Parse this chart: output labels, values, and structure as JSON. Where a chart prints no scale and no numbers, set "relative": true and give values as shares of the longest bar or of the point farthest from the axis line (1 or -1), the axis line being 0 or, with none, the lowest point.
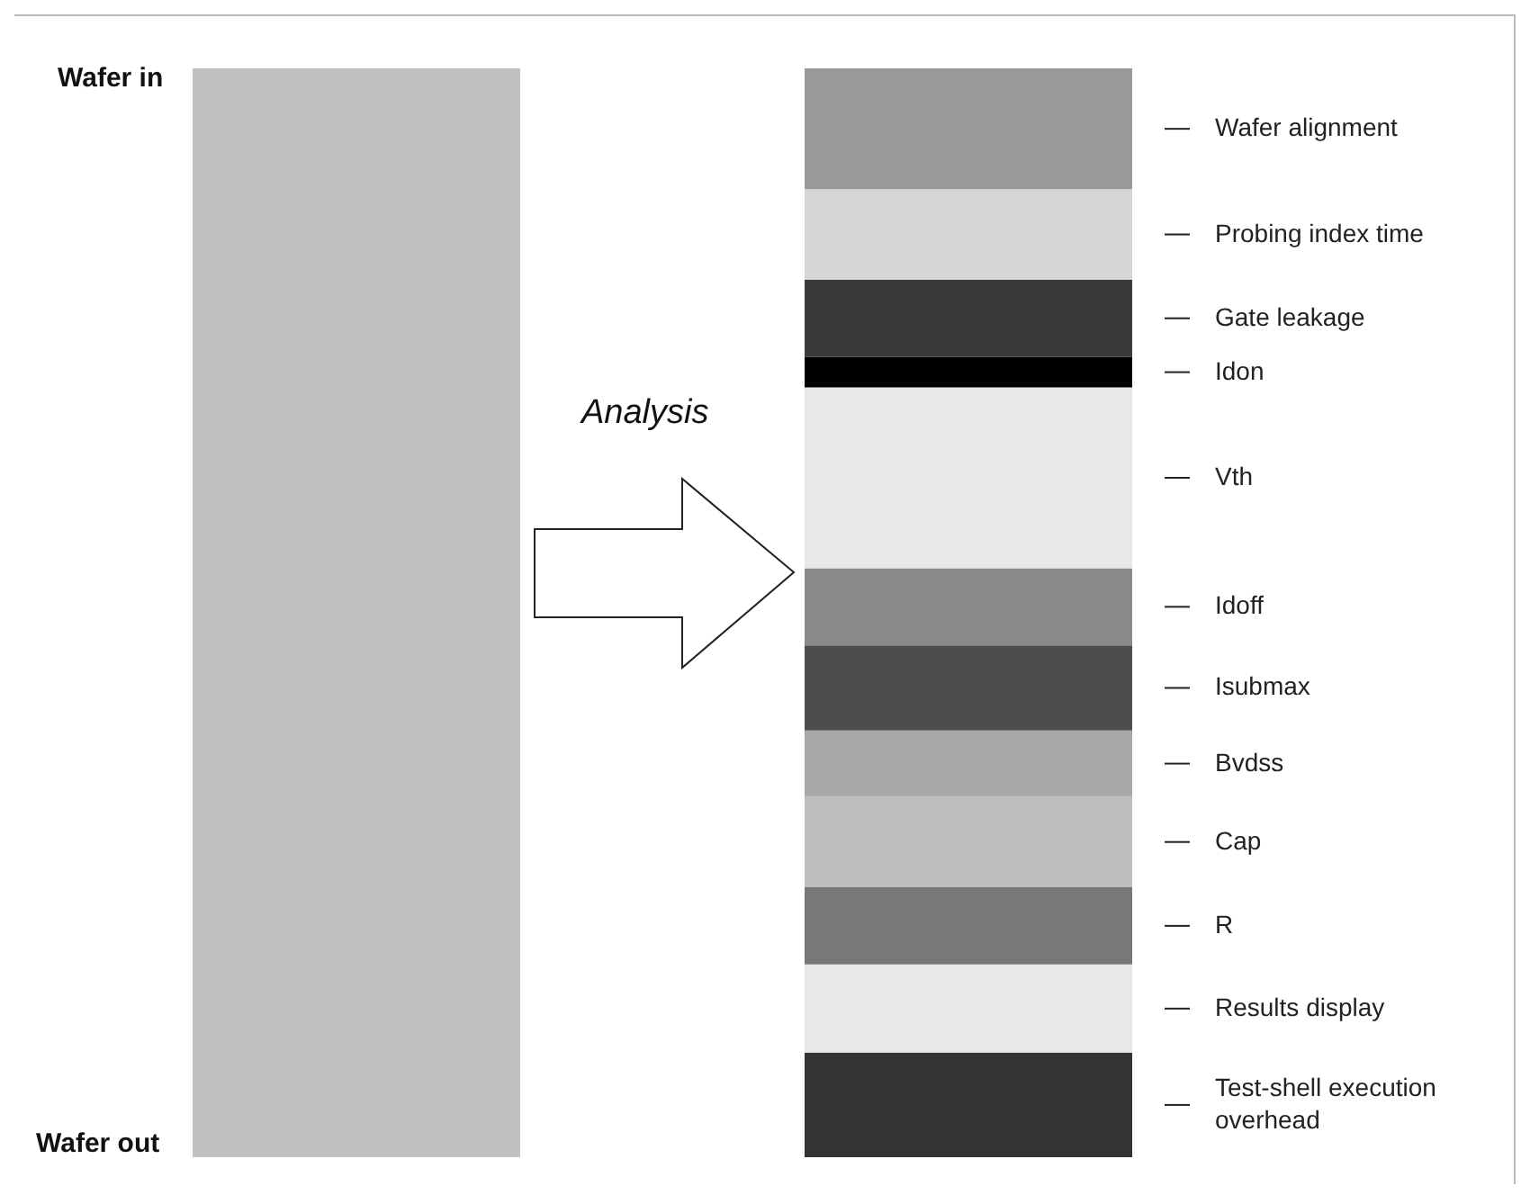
{
  "chart_data": {
    "type": "bar",
    "stacked": true,
    "relative": true,
    "legend": false,
    "categories": [
      null,
      null
    ],
    "annotations": [
      "Wafer in",
      "Wafer out",
      "Analysis"
    ],
    "series": [
      {
        "color": "#c0c0c0",
        "values": [
          1,
          null
        ]
      },
      {
        "name": "Test-shell execution overhead",
        "color": "#333333",
        "values": [
          null,
          0.096
        ]
      },
      {
        "name": "Results display",
        "color": "#e8e8e8",
        "values": [
          null,
          0.081
        ]
      },
      {
        "name": "R",
        "color": "#787878",
        "values": [
          null,
          0.071
        ]
      },
      {
        "name": "Cap",
        "color": "#bdbdbd",
        "values": [
          null,
          0.083
        ]
      },
      {
        "name": "Bvdss",
        "color": "#a8a8a8",
        "values": [
          null,
          0.061
        ]
      },
      {
        "name": "Isubmax",
        "color": "#4d4d4d",
        "values": [
          null,
          0.078
        ]
      },
      {
        "name": "Idoff",
        "color": "#8a8a8a",
        "values": [
          null,
          0.071
        ]
      },
      {
        "name": "Vth",
        "color": "#e8e8e8",
        "values": [
          null,
          0.166
        ]
      },
      {
        "name": "Idon",
        "color": "#000000",
        "values": [
          null,
          0.028
        ]
      },
      {
        "name": "Gate leakage",
        "color": "#3a3a3a",
        "values": [
          null,
          0.071
        ]
      },
      {
        "name": "Probing index time",
        "color": "#d6d6d6",
        "values": [
          null,
          0.083
        ]
      },
      {
        "name": "Wafer alignment",
        "color": "#999999",
        "values": [
          null,
          0.111
        ]
      }
    ]
  }
}
